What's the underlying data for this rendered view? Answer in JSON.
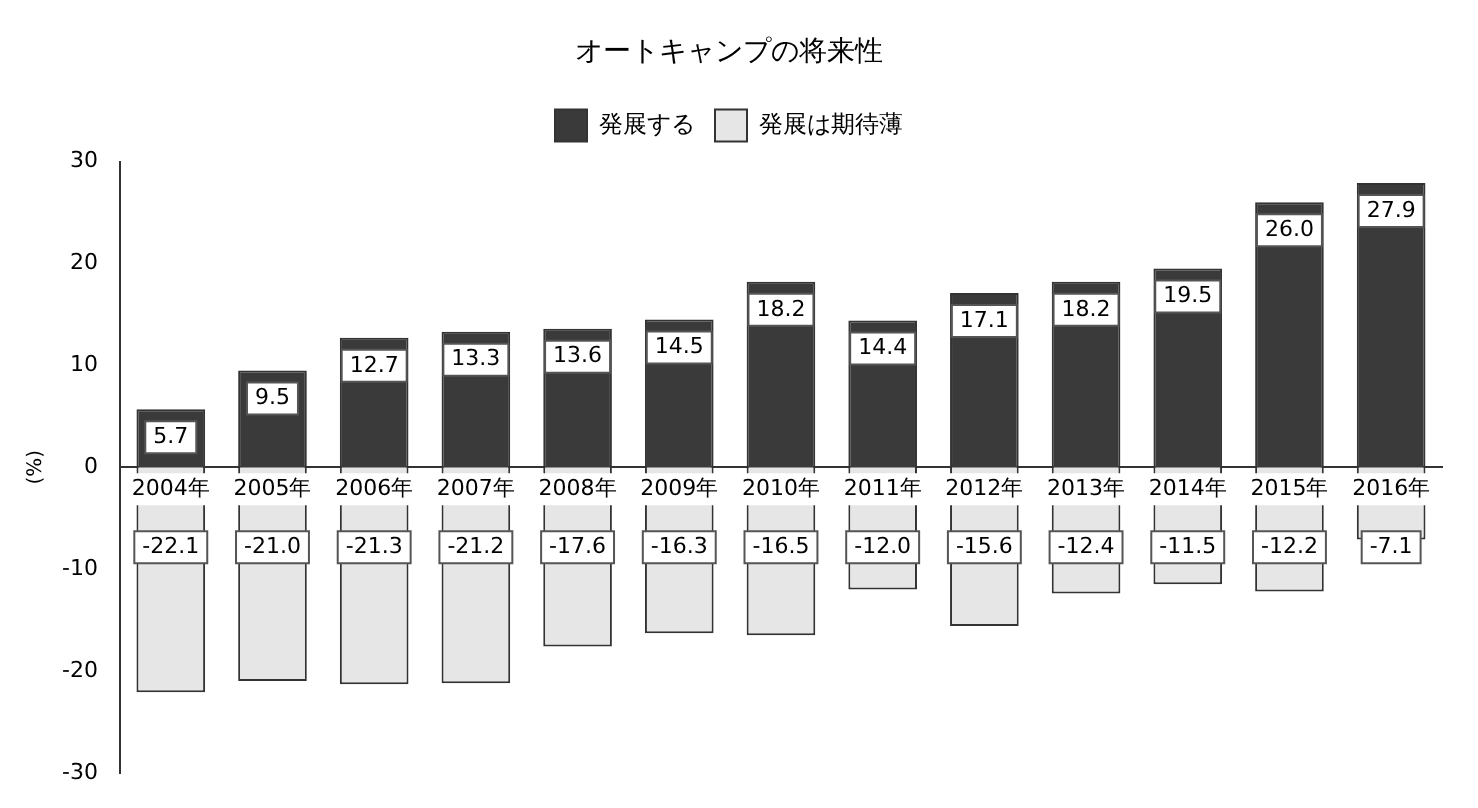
{
  "chart_data": {
    "type": "bar",
    "title": "オートキャンプの将来性",
    "ylabel": "(%)",
    "categories": [
      "2004年",
      "2005年",
      "2006年",
      "2007年",
      "2008年",
      "2009年",
      "2010年",
      "2011年",
      "2012年",
      "2013年",
      "2014年",
      "2015年",
      "2016年"
    ],
    "series": [
      {
        "name": "発展する",
        "color": "#3a3a3a",
        "values": [
          5.7,
          9.5,
          12.7,
          13.3,
          13.6,
          14.5,
          18.2,
          14.4,
          17.1,
          18.2,
          19.5,
          26.0,
          27.9
        ],
        "value_labels": [
          "5.7",
          "9.5",
          "12.7",
          "13.3",
          "13.6",
          "14.5",
          "18.2",
          "14.4",
          "17.1",
          "18.2",
          "19.5",
          "26.0",
          "27.9"
        ]
      },
      {
        "name": "発展は期待薄",
        "color": "#e6e6e6",
        "values": [
          -22.1,
          -21.0,
          -21.3,
          -21.2,
          -17.6,
          -16.3,
          -16.5,
          -12.0,
          -15.6,
          -12.4,
          -11.5,
          -12.2,
          -7.1
        ],
        "value_labels": [
          "-22.1",
          "-21.0",
          "-21.3",
          "-21.2",
          "-17.6",
          "-16.3",
          "-16.5",
          "-12.0",
          "-15.6",
          "-12.4",
          "-11.5",
          "-12.2",
          "-7.1"
        ]
      }
    ],
    "stacked": true,
    "ylim": [
      -30,
      30
    ],
    "yticks": [
      -30,
      -20,
      -10,
      0,
      10,
      20,
      30
    ],
    "grid": false,
    "legend": "top"
  }
}
